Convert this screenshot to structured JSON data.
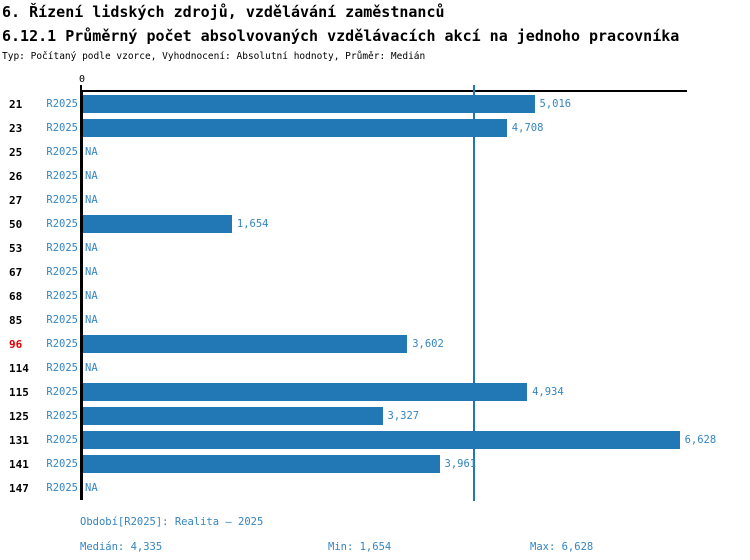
{
  "chart_data": {
    "type": "bar",
    "orientation": "horizontal",
    "title": "6. Řízení lidských zdrojů, vzdělávání zaměstnanců",
    "subtitle": "6.12.1 Průměrný počet absolvovaných vzdělávacích akcí na jednoho pracovníka",
    "meta_line": "Typ: Počítaný podle vzorce, Vyhodnocení: Absolutní hodnoty, Průměr: Medián",
    "x_tick_labels": [
      "0"
    ],
    "xlim": [
      0,
      6710
    ],
    "grid": false,
    "legend_position": "none",
    "na_text": "NA",
    "median_value": 4335,
    "period_name": "R2025",
    "rows": [
      {
        "id": "21",
        "period": "R2025",
        "value": 5016,
        "value_label": "5,016",
        "highlight": false
      },
      {
        "id": "23",
        "period": "R2025",
        "value": 4708,
        "value_label": "4,708",
        "highlight": false
      },
      {
        "id": "25",
        "period": "R2025",
        "value": null,
        "value_label": "NA",
        "highlight": false
      },
      {
        "id": "26",
        "period": "R2025",
        "value": null,
        "value_label": "NA",
        "highlight": false
      },
      {
        "id": "27",
        "period": "R2025",
        "value": null,
        "value_label": "NA",
        "highlight": false
      },
      {
        "id": "50",
        "period": "R2025",
        "value": 1654,
        "value_label": "1,654",
        "highlight": false
      },
      {
        "id": "53",
        "period": "R2025",
        "value": null,
        "value_label": "NA",
        "highlight": false
      },
      {
        "id": "67",
        "period": "R2025",
        "value": null,
        "value_label": "NA",
        "highlight": false
      },
      {
        "id": "68",
        "period": "R2025",
        "value": null,
        "value_label": "NA",
        "highlight": false
      },
      {
        "id": "85",
        "period": "R2025",
        "value": null,
        "value_label": "NA",
        "highlight": false
      },
      {
        "id": "96",
        "period": "R2025",
        "value": 3602,
        "value_label": "3,602",
        "highlight": true
      },
      {
        "id": "114",
        "period": "R2025",
        "value": null,
        "value_label": "NA",
        "highlight": false
      },
      {
        "id": "115",
        "period": "R2025",
        "value": 4934,
        "value_label": "4,934",
        "highlight": false
      },
      {
        "id": "125",
        "period": "R2025",
        "value": 3327,
        "value_label": "3,327",
        "highlight": false
      },
      {
        "id": "131",
        "period": "R2025",
        "value": 6628,
        "value_label": "6,628",
        "highlight": false
      },
      {
        "id": "141",
        "period": "R2025",
        "value": 3961,
        "value_label": "3,961",
        "highlight": false
      },
      {
        "id": "147",
        "period": "R2025",
        "value": null,
        "value_label": "NA",
        "highlight": false
      }
    ],
    "colors": {
      "bar": "#2277b5",
      "text_blue": "#3585c0",
      "highlight_red": "#e00000",
      "axis": "#000000"
    }
  },
  "footer": {
    "period_line": "Období[R2025]: Realita – 2025",
    "median": "Medián: 4,335",
    "min": "Min: 1,654",
    "max": "Max: 6,628"
  }
}
